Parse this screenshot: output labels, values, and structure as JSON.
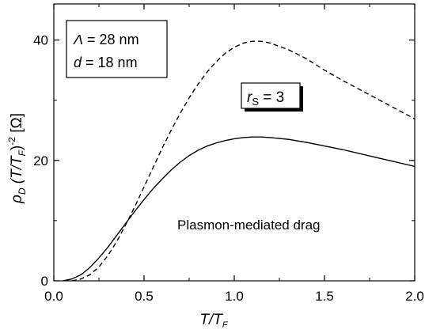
{
  "chart_data": {
    "type": "line",
    "xlabel": "T/T",
    "xlabel_sub": "F",
    "ylabel": {
      "rho": "ρ",
      "rho_sub": "D",
      "part1": " (T/T",
      "part1_sub": "F",
      "part2": ")",
      "exp": "-2",
      "unit": " [Ω]"
    },
    "xlim": [
      0.0,
      2.0
    ],
    "ylim": [
      0,
      46
    ],
    "xticks": [
      0.0,
      0.5,
      1.0,
      1.5,
      2.0
    ],
    "xtick_labels": [
      "0.0",
      "0.5",
      "1.0",
      "1.5",
      "2.0"
    ],
    "yticks": [
      0,
      20,
      40
    ],
    "ytick_labels": [
      "0",
      "20",
      "40"
    ],
    "grid": false,
    "series": [
      {
        "style": "solid",
        "color": "#000000",
        "x": [
          0.05,
          0.1,
          0.15,
          0.2,
          0.25,
          0.3,
          0.35,
          0.4,
          0.45,
          0.5,
          0.55,
          0.6,
          0.65,
          0.7,
          0.75,
          0.8,
          0.85,
          0.9,
          0.95,
          1.0,
          1.05,
          1.1,
          1.15,
          1.2,
          1.3,
          1.4,
          1.5,
          1.6,
          1.7,
          1.8,
          1.9,
          2.0
        ],
        "y": [
          0.0,
          0.3,
          1.0,
          2.2,
          3.8,
          5.6,
          7.6,
          9.6,
          11.6,
          13.5,
          15.3,
          16.9,
          18.4,
          19.7,
          20.8,
          21.7,
          22.4,
          22.9,
          23.3,
          23.6,
          23.8,
          23.9,
          23.9,
          23.8,
          23.5,
          23.0,
          22.4,
          21.8,
          21.1,
          20.4,
          19.7,
          19.0
        ]
      },
      {
        "style": "dashed",
        "color": "#000000",
        "x": [
          0.1,
          0.15,
          0.2,
          0.25,
          0.3,
          0.35,
          0.4,
          0.45,
          0.5,
          0.55,
          0.6,
          0.65,
          0.7,
          0.75,
          0.8,
          0.85,
          0.9,
          0.95,
          1.0,
          1.05,
          1.1,
          1.15,
          1.2,
          1.3,
          1.4,
          1.5,
          1.6,
          1.7,
          1.8,
          1.9,
          2.0
        ],
        "y": [
          0.0,
          0.3,
          1.0,
          2.3,
          4.2,
          6.6,
          9.4,
          12.4,
          15.6,
          18.8,
          22.0,
          25.0,
          27.8,
          30.4,
          32.7,
          34.7,
          36.4,
          37.8,
          38.8,
          39.5,
          39.8,
          39.8,
          39.5,
          38.4,
          36.9,
          35.0,
          33.3,
          31.7,
          30.1,
          28.5,
          26.9
        ]
      }
    ],
    "annotations": {
      "box1": {
        "lambda_symbol": "Λ",
        "lambda_value": " = 28 nm",
        "d_symbol": "d",
        "d_value": " = 18 nm"
      },
      "rs_box": {
        "r": "r",
        "sub": "S",
        "value": " = 3"
      },
      "label": "Plasmon-mediated drag"
    }
  }
}
